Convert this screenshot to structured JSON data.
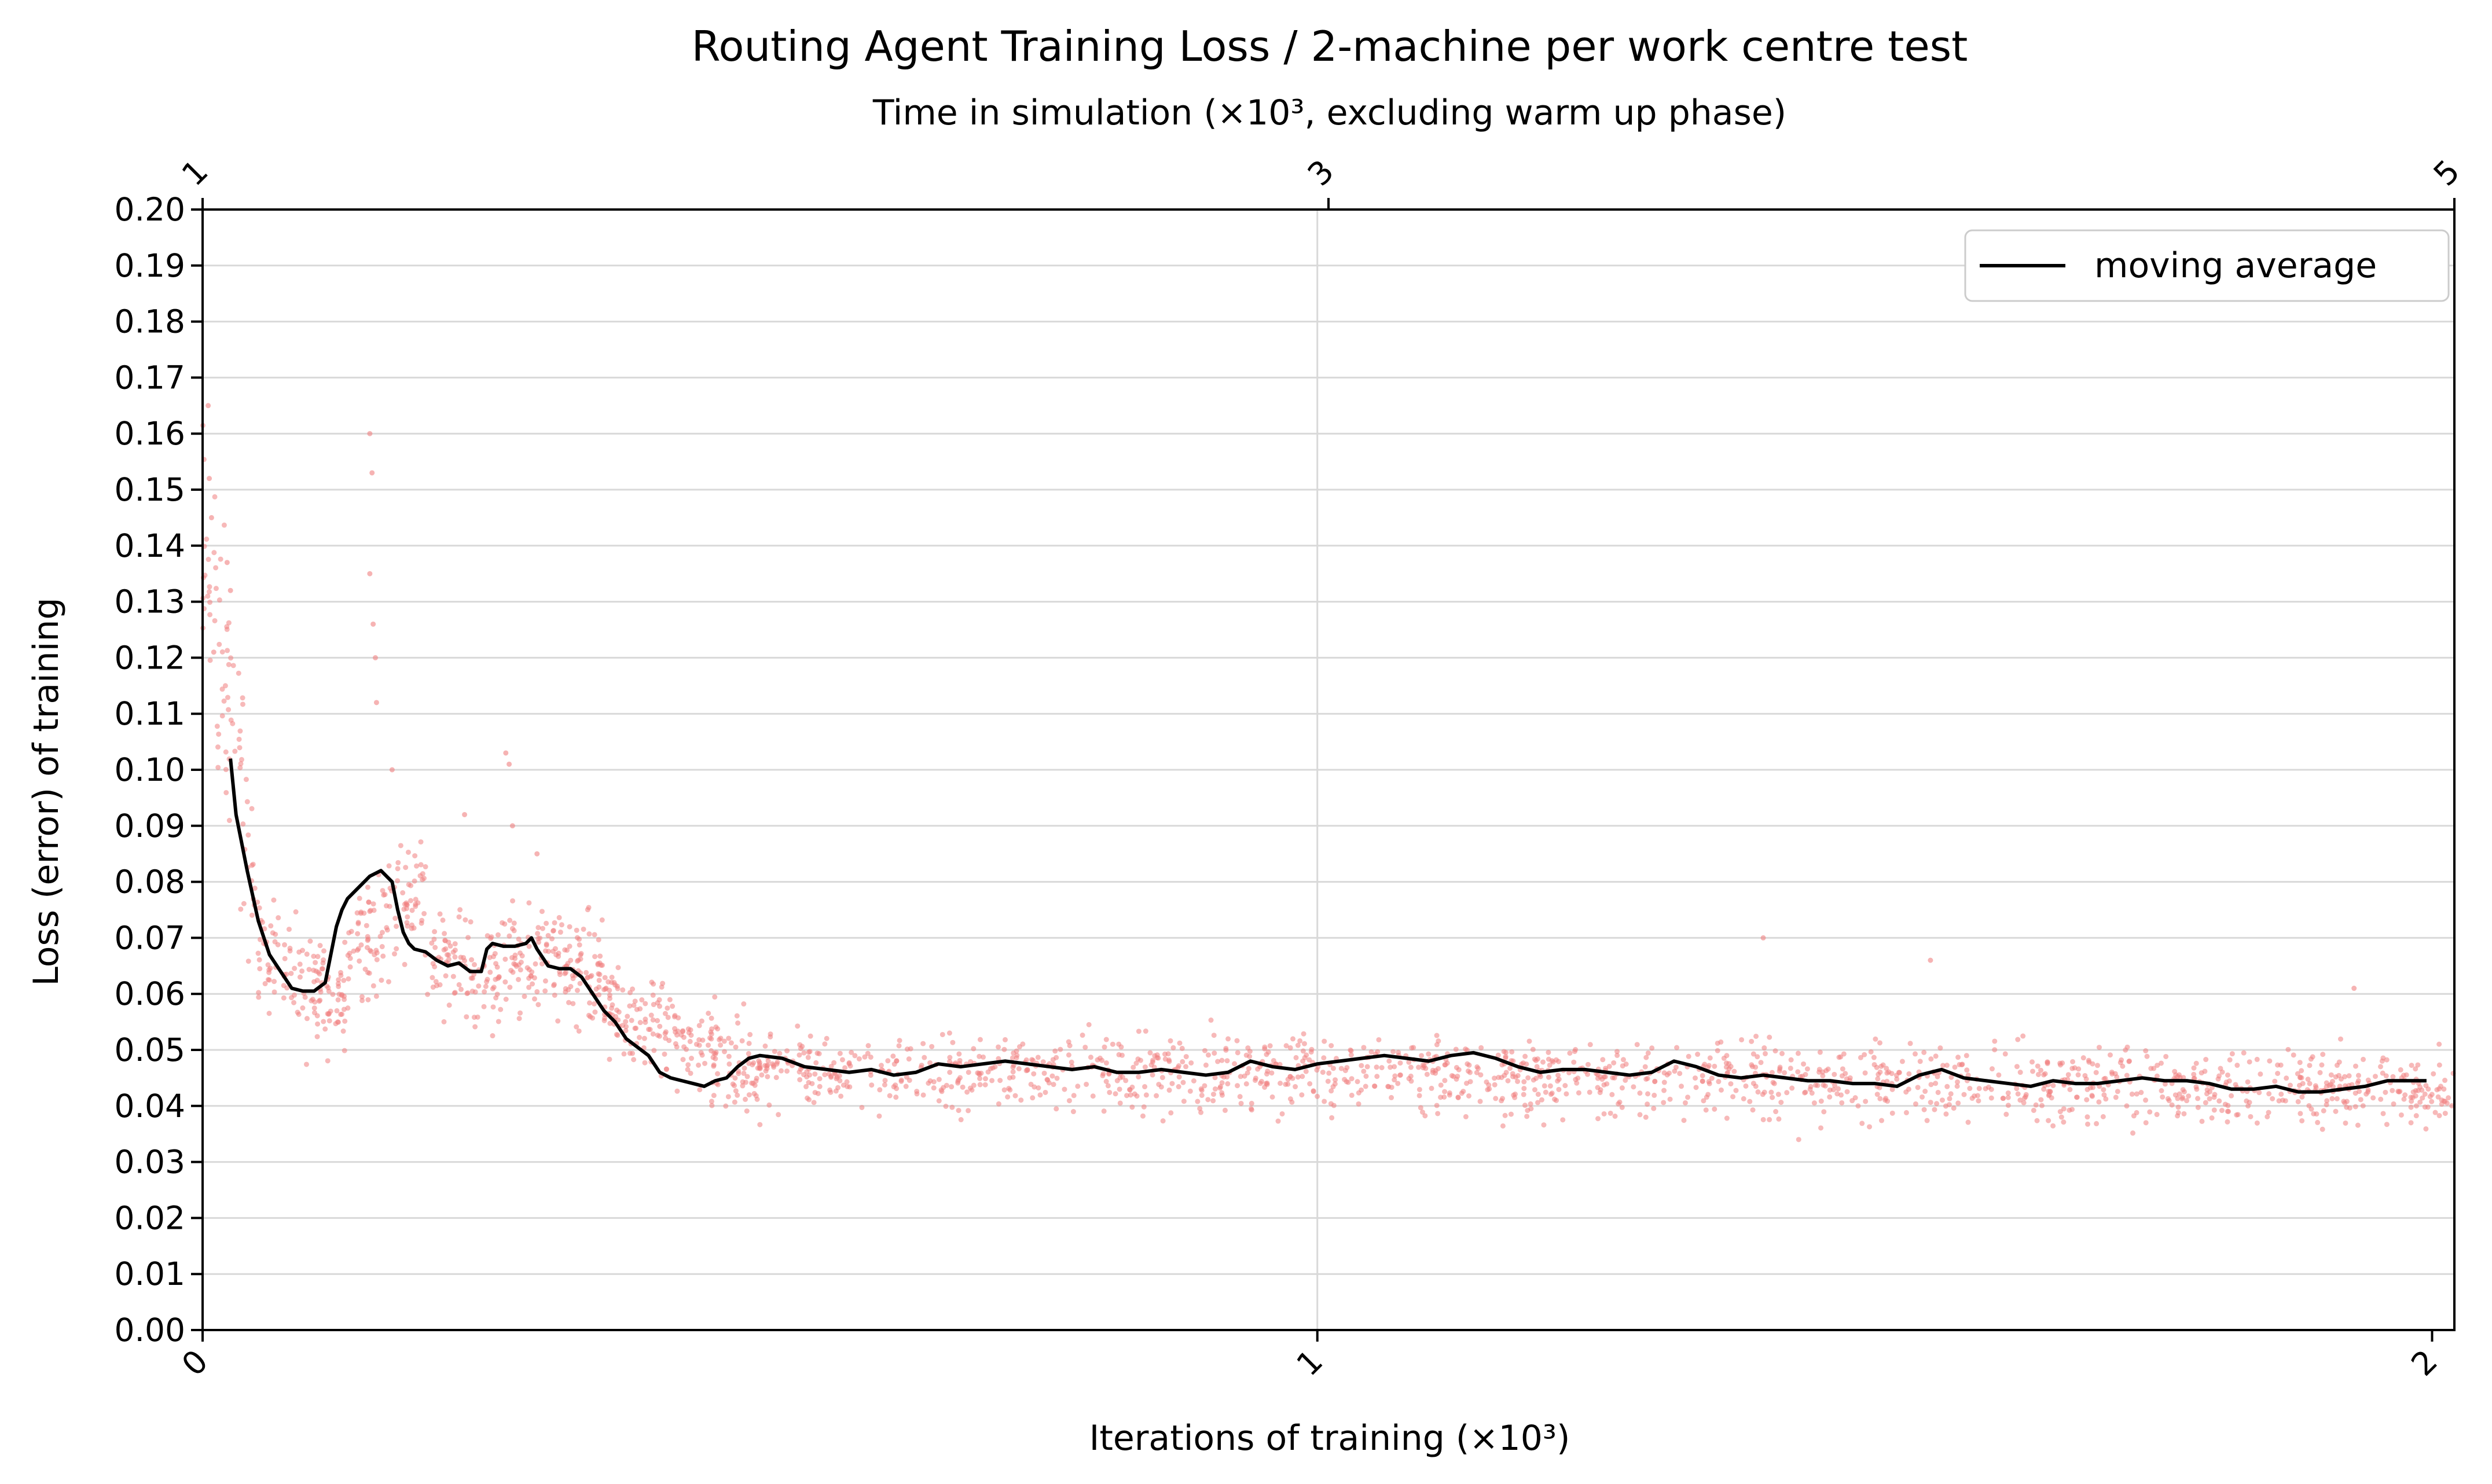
{
  "chart_data": {
    "type": "line",
    "title": "Routing Agent Training Loss / 2-machine per work centre test",
    "subtitle": "Time in simulation (×10³, excluding warm up phase)",
    "xlabel": "Iterations of training (×10³)",
    "ylabel": "Loss (error) of training",
    "xlim": [
      0,
      2.02
    ],
    "ylim": [
      0,
      0.2
    ],
    "x_ticks": [
      0,
      1,
      2
    ],
    "x_tick_labels": [
      "0",
      "1",
      "2"
    ],
    "top_axis": {
      "label": "Time in simulation (×10³, excluding warm up phase)",
      "ticks": [
        "1",
        "3",
        "5"
      ],
      "tick_positions": [
        0,
        1.01,
        2.02
      ]
    },
    "y_ticks": [
      0.0,
      0.01,
      0.02,
      0.03,
      0.04,
      0.05,
      0.06,
      0.07,
      0.08,
      0.09,
      0.1,
      0.11,
      0.12,
      0.13,
      0.14,
      0.15,
      0.16,
      0.17,
      0.18,
      0.19,
      0.2
    ],
    "y_tick_labels": [
      "0.00",
      "0.01",
      "0.02",
      "0.03",
      "0.04",
      "0.05",
      "0.06",
      "0.07",
      "0.08",
      "0.09",
      "0.10",
      "0.11",
      "0.12",
      "0.13",
      "0.14",
      "0.15",
      "0.16",
      "0.17",
      "0.18",
      "0.19",
      "0.20"
    ],
    "grid": "horizontal, plus vertical at x=1",
    "legend": {
      "position": "top-right",
      "entries": [
        "moving average"
      ]
    },
    "series": [
      {
        "name": "moving average",
        "color": "#000000",
        "x": [
          0.025,
          0.03,
          0.04,
          0.05,
          0.06,
          0.07,
          0.08,
          0.09,
          0.1,
          0.11,
          0.12,
          0.125,
          0.13,
          0.14,
          0.15,
          0.16,
          0.17,
          0.175,
          0.18,
          0.185,
          0.19,
          0.2,
          0.21,
          0.22,
          0.23,
          0.24,
          0.25,
          0.255,
          0.26,
          0.27,
          0.28,
          0.29,
          0.295,
          0.3,
          0.31,
          0.32,
          0.33,
          0.34,
          0.35,
          0.36,
          0.37,
          0.38,
          0.39,
          0.4,
          0.41,
          0.42,
          0.43,
          0.44,
          0.45,
          0.46,
          0.47,
          0.48,
          0.49,
          0.5,
          0.52,
          0.54,
          0.56,
          0.58,
          0.6,
          0.62,
          0.64,
          0.66,
          0.68,
          0.7,
          0.72,
          0.74,
          0.76,
          0.78,
          0.8,
          0.82,
          0.84,
          0.86,
          0.88,
          0.9,
          0.92,
          0.94,
          0.96,
          0.98,
          1.0,
          1.02,
          1.04,
          1.06,
          1.08,
          1.1,
          1.12,
          1.14,
          1.16,
          1.18,
          1.2,
          1.22,
          1.24,
          1.26,
          1.28,
          1.3,
          1.32,
          1.34,
          1.36,
          1.38,
          1.4,
          1.42,
          1.44,
          1.46,
          1.48,
          1.5,
          1.52,
          1.54,
          1.56,
          1.58,
          1.6,
          1.62,
          1.64,
          1.66,
          1.68,
          1.7,
          1.72,
          1.74,
          1.76,
          1.78,
          1.8,
          1.82,
          1.84,
          1.86,
          1.88,
          1.9,
          1.92,
          1.94,
          1.96,
          1.98,
          1.995
        ],
        "y": [
          0.102,
          0.092,
          0.082,
          0.073,
          0.067,
          0.064,
          0.061,
          0.0605,
          0.0605,
          0.062,
          0.072,
          0.075,
          0.077,
          0.079,
          0.081,
          0.082,
          0.08,
          0.075,
          0.071,
          0.069,
          0.068,
          0.0675,
          0.066,
          0.065,
          0.0655,
          0.064,
          0.064,
          0.068,
          0.069,
          0.0685,
          0.0685,
          0.069,
          0.07,
          0.068,
          0.065,
          0.0645,
          0.0645,
          0.063,
          0.06,
          0.057,
          0.055,
          0.052,
          0.0505,
          0.049,
          0.046,
          0.045,
          0.0445,
          0.044,
          0.0435,
          0.0445,
          0.045,
          0.047,
          0.0485,
          0.049,
          0.0485,
          0.047,
          0.0465,
          0.046,
          0.0465,
          0.0455,
          0.046,
          0.0475,
          0.047,
          0.0475,
          0.048,
          0.0475,
          0.047,
          0.0465,
          0.047,
          0.046,
          0.046,
          0.0465,
          0.046,
          0.0455,
          0.046,
          0.048,
          0.047,
          0.0465,
          0.0475,
          0.048,
          0.0485,
          0.049,
          0.0485,
          0.048,
          0.049,
          0.0495,
          0.0485,
          0.047,
          0.046,
          0.0465,
          0.0465,
          0.046,
          0.0455,
          0.046,
          0.048,
          0.047,
          0.0455,
          0.045,
          0.0455,
          0.045,
          0.0445,
          0.0445,
          0.044,
          0.044,
          0.0435,
          0.0455,
          0.0465,
          0.045,
          0.0445,
          0.044,
          0.0435,
          0.0445,
          0.044,
          0.044,
          0.0445,
          0.045,
          0.0445,
          0.0445,
          0.044,
          0.043,
          0.043,
          0.0435,
          0.0425,
          0.0425,
          0.043,
          0.0435,
          0.0445,
          0.0445,
          0.0445
        ]
      }
    ],
    "scatter": {
      "description_color": "#f08080",
      "count": 2000,
      "segments": [
        {
          "x_range": [
            0.0,
            0.05
          ],
          "center_start": 0.14,
          "center_end": 0.075,
          "spread": 0.03
        },
        {
          "x_range": [
            0.05,
            0.13
          ],
          "center_start": 0.068,
          "center_end": 0.058,
          "spread": 0.012
        },
        {
          "x_range": [
            0.13,
            0.2
          ],
          "center_start": 0.068,
          "center_end": 0.078,
          "spread": 0.015
        },
        {
          "x_range": [
            0.2,
            0.36
          ],
          "center_start": 0.066,
          "center_end": 0.064,
          "spread": 0.012
        },
        {
          "x_range": [
            0.36,
            0.5
          ],
          "center_start": 0.058,
          "center_end": 0.046,
          "spread": 0.01
        },
        {
          "x_range": [
            0.5,
            2.02
          ],
          "center_start": 0.047,
          "center_end": 0.043,
          "spread": 0.008
        }
      ],
      "outliers": [
        {
          "x": 0.005,
          "y": 0.165
        },
        {
          "x": 0.006,
          "y": 0.152
        },
        {
          "x": 0.008,
          "y": 0.145
        },
        {
          "x": 0.01,
          "y": 0.121
        },
        {
          "x": 0.022,
          "y": 0.137
        },
        {
          "x": 0.025,
          "y": 0.132
        },
        {
          "x": 0.15,
          "y": 0.16
        },
        {
          "x": 0.152,
          "y": 0.153
        },
        {
          "x": 0.15,
          "y": 0.135
        },
        {
          "x": 0.153,
          "y": 0.126
        },
        {
          "x": 0.155,
          "y": 0.12
        },
        {
          "x": 0.156,
          "y": 0.112
        },
        {
          "x": 0.17,
          "y": 0.1
        },
        {
          "x": 0.272,
          "y": 0.103
        },
        {
          "x": 0.275,
          "y": 0.101
        },
        {
          "x": 0.278,
          "y": 0.09
        },
        {
          "x": 0.235,
          "y": 0.092
        },
        {
          "x": 0.3,
          "y": 0.085
        },
        {
          "x": 1.4,
          "y": 0.07
        },
        {
          "x": 1.55,
          "y": 0.066
        },
        {
          "x": 1.93,
          "y": 0.061
        }
      ]
    }
  }
}
